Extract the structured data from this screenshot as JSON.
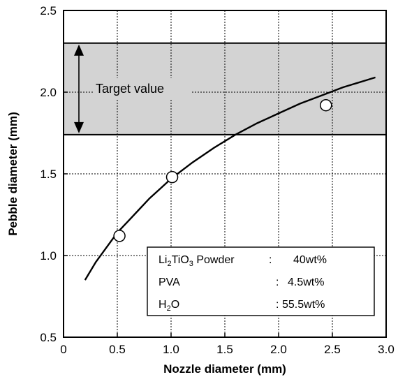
{
  "chart_data": {
    "type": "scatter",
    "xlabel": "Nozzle diameter (mm)",
    "ylabel": "Pebble diameter (mm)",
    "xlim": [
      0,
      3.0
    ],
    "ylim": [
      0.5,
      2.5
    ],
    "xticks": [
      "0",
      "0.5",
      "1.0",
      "1.5",
      "2.0",
      "2.5",
      "3.0"
    ],
    "yticks": [
      "0.5",
      "1.0",
      "1.5",
      "2.0",
      "2.5"
    ],
    "grid": true,
    "points": [
      {
        "x": 0.52,
        "y": 1.12
      },
      {
        "x": 1.01,
        "y": 1.48
      },
      {
        "x": 2.44,
        "y": 1.92
      }
    ],
    "fit_curve": [
      {
        "x": 0.2,
        "y": 0.85
      },
      {
        "x": 0.3,
        "y": 0.96
      },
      {
        "x": 0.4,
        "y": 1.05
      },
      {
        "x": 0.5,
        "y": 1.14
      },
      {
        "x": 0.6,
        "y": 1.21
      },
      {
        "x": 0.7,
        "y": 1.28
      },
      {
        "x": 0.8,
        "y": 1.35
      },
      {
        "x": 0.9,
        "y": 1.41
      },
      {
        "x": 1.0,
        "y": 1.47
      },
      {
        "x": 1.2,
        "y": 1.57
      },
      {
        "x": 1.4,
        "y": 1.66
      },
      {
        "x": 1.6,
        "y": 1.74
      },
      {
        "x": 1.8,
        "y": 1.81
      },
      {
        "x": 2.0,
        "y": 1.87
      },
      {
        "x": 2.2,
        "y": 1.93
      },
      {
        "x": 2.4,
        "y": 1.98
      },
      {
        "x": 2.6,
        "y": 2.03
      },
      {
        "x": 2.8,
        "y": 2.07
      },
      {
        "x": 2.9,
        "y": 2.09
      }
    ],
    "target_band": {
      "ymin": 1.74,
      "ymax": 2.3,
      "color": "#d3d3d3"
    },
    "annotation": "Target value",
    "legend": {
      "placement": "bottom-right",
      "rows": [
        {
          "name_pre": "Li",
          "sub1": "2",
          "name_mid": "TiO",
          "sub2": "3",
          "name_post": " Powder",
          "sep": ":",
          "value": "40wt%"
        },
        {
          "name_pre": "PVA",
          "sub1": "",
          "name_mid": "",
          "sub2": "",
          "name_post": "",
          "sep": ":",
          "value": "4.5wt%"
        },
        {
          "name_pre": "H",
          "sub1": "2",
          "name_mid": "O",
          "sub2": "",
          "name_post": "",
          "sep": ":",
          "value": "55.5wt%"
        }
      ]
    }
  }
}
